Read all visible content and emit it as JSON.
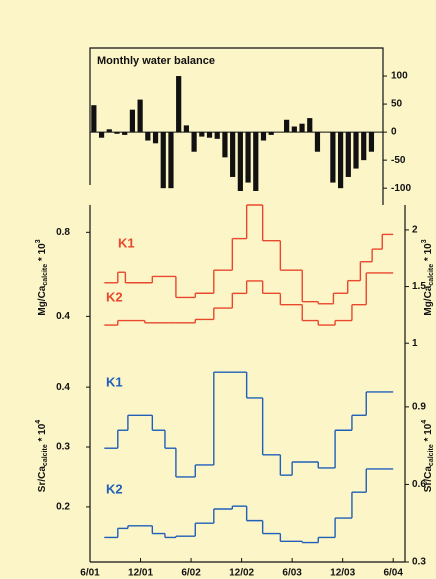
{
  "chart_data": [
    {
      "type": "bar",
      "title": "Monthly water balance",
      "color": "#111111",
      "x": [
        0,
        1,
        2,
        3,
        4,
        5,
        6,
        7,
        8,
        9,
        10,
        11,
        12,
        13,
        14,
        15,
        16,
        17,
        18,
        19,
        20,
        21,
        22,
        23,
        24,
        25,
        26,
        27,
        28,
        29,
        30,
        31,
        32,
        33,
        34,
        35,
        36
      ],
      "values": [
        48,
        -10,
        5,
        -3,
        -5,
        40,
        58,
        -15,
        -20,
        -100,
        -100,
        100,
        12,
        -35,
        -8,
        -10,
        -12,
        -45,
        -80,
        -105,
        -90,
        -105,
        -15,
        -5,
        0,
        22,
        10,
        15,
        25,
        -35,
        0,
        -90,
        -100,
        -80,
        -65,
        -50,
        -35
      ],
      "xlim": [
        -0.5,
        37.5
      ],
      "ylim": [
        -130,
        150
      ],
      "yticks": [
        100,
        50,
        0,
        -50,
        -100
      ]
    },
    {
      "type": "step",
      "ylabel": [
        "Mg/Ca",
        "calcite",
        " * 10",
        "3"
      ],
      "y2label": [
        "Mg/Ca",
        "calcite",
        " * 10",
        "3"
      ],
      "xlim": [
        0,
        37.4
      ],
      "ylim": [
        0.24,
        0.93
      ],
      "yticks": [
        0.4,
        0.8
      ],
      "y2lim": [
        0.94,
        2.22
      ],
      "y2ticks": [
        1.0,
        1.5,
        2.0
      ],
      "series": [
        {
          "name": "K1",
          "color": "#e8482c",
          "bins": [
            1.7,
            3.3,
            4.2,
            7.4,
            10.2,
            12.5,
            14.7,
            16.9,
            18.6,
            20.5,
            22.6,
            25.2,
            27.1,
            28.9,
            30.6,
            32.1,
            33.5,
            34.7,
            36.0
          ],
          "values": [
            0.56,
            0.61,
            0.56,
            0.59,
            0.49,
            0.51,
            0.62,
            0.77,
            0.93,
            0.76,
            0.62,
            0.47,
            0.46,
            0.51,
            0.57,
            0.66,
            0.72,
            0.79
          ]
        },
        {
          "name": "K2",
          "color": "#e8482c",
          "axis": "y2",
          "bins": [
            1.7,
            3.3,
            6.5,
            10.2,
            12.5,
            14.7,
            16.9,
            18.6,
            20.5,
            22.6,
            25.2,
            27.1,
            29.1,
            31.1,
            32.8,
            36.0
          ],
          "values": [
            1.16,
            1.2,
            1.18,
            1.18,
            1.21,
            1.31,
            1.44,
            1.55,
            1.44,
            1.34,
            1.2,
            1.16,
            1.2,
            1.34,
            1.62
          ]
        }
      ]
    },
    {
      "type": "step",
      "ylabel": [
        "Sr/Ca",
        "calcite",
        " * 10",
        "4"
      ],
      "y2label": [
        "Sr/Ca",
        "calcite",
        " * 10",
        "4"
      ],
      "xlim": [
        0,
        37.4
      ],
      "xticks": [
        {
          "value": 0,
          "label": "6/01"
        },
        {
          "value": 6,
          "label": "12/01"
        },
        {
          "value": 12,
          "label": "6/02"
        },
        {
          "value": 18,
          "label": "12/02"
        },
        {
          "value": 24,
          "label": "6/03"
        },
        {
          "value": 30,
          "label": "12/03"
        },
        {
          "value": 36,
          "label": "6/04"
        }
      ],
      "ylim": [
        0.108,
        0.462
      ],
      "yticks": [
        0.2,
        0.3,
        0.4
      ],
      "y2lim": [
        0.3,
        1.12
      ],
      "y2ticks": [
        0.3,
        0.6,
        0.9
      ],
      "series": [
        {
          "name": "K1",
          "color": "#1f5fb8",
          "bins": [
            1.7,
            3.3,
            4.5,
            7.4,
            8.9,
            10.2,
            12.5,
            14.7,
            18.6,
            20.5,
            22.6,
            24.0,
            27.1,
            29.1,
            31.1,
            32.8,
            36.0
          ],
          "values": [
            0.298,
            0.328,
            0.353,
            0.328,
            0.298,
            0.25,
            0.27,
            0.425,
            0.382,
            0.287,
            0.253,
            0.275,
            0.265,
            0.328,
            0.353,
            0.392
          ]
        },
        {
          "name": "K2",
          "color": "#1f5fb8",
          "axis": "y2",
          "bins": [
            1.7,
            3.3,
            4.5,
            7.4,
            8.9,
            10.2,
            12.5,
            14.7,
            16.9,
            18.6,
            20.5,
            22.6,
            25.2,
            27.1,
            29.1,
            31.1,
            32.8,
            36.0
          ],
          "values": [
            0.395,
            0.43,
            0.44,
            0.41,
            0.395,
            0.4,
            0.45,
            0.505,
            0.516,
            0.46,
            0.41,
            0.38,
            0.375,
            0.395,
            0.47,
            0.57,
            0.66
          ]
        }
      ]
    }
  ]
}
